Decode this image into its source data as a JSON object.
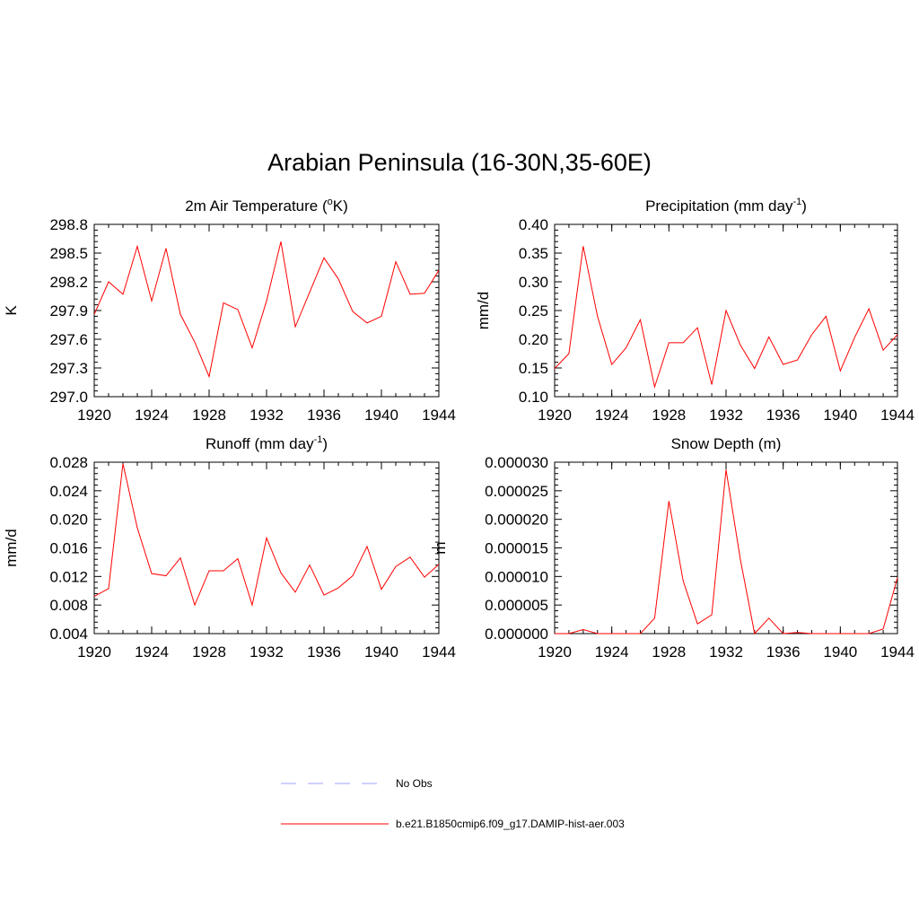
{
  "title": "Arabian Peninsula (16-30N,35-60E)",
  "colors": {
    "model": "#ff0000",
    "obs": "#a0a0ff",
    "axis": "#000000"
  },
  "legend": {
    "items": [
      {
        "label": "No Obs",
        "style": "dashed",
        "color": "#a0a0ff"
      },
      {
        "label": "b.e21.B1850cmip6.f09_g17.DAMIP-hist-aer.003",
        "style": "solid",
        "color": "#ff0000"
      }
    ]
  },
  "chart_data": [
    {
      "type": "line",
      "title": "2m Air Temperature (",
      "title_sup": "o",
      "title_suffix": "K)",
      "ylabel": "K",
      "xlim": [
        1920,
        1944
      ],
      "ylim": [
        297.0,
        298.8
      ],
      "xticks": [
        1920,
        1924,
        1928,
        1932,
        1936,
        1940,
        1944
      ],
      "yticks": [
        297.0,
        297.3,
        297.6,
        297.9,
        298.2,
        298.5,
        298.8
      ],
      "ytick_labels": [
        "297.0",
        "297.3",
        "297.6",
        "297.9",
        "298.2",
        "298.5",
        "298.8"
      ],
      "x": [
        1920,
        1921,
        1922,
        1923,
        1924,
        1925,
        1926,
        1927,
        1928,
        1929,
        1930,
        1931,
        1932,
        1933,
        1934,
        1935,
        1936,
        1937,
        1938,
        1939,
        1940,
        1941,
        1942,
        1943,
        1944
      ],
      "series": [
        {
          "values": [
            297.86,
            298.2,
            298.07,
            298.57,
            298.0,
            298.55,
            297.86,
            297.57,
            297.21,
            297.98,
            297.91,
            297.51,
            298.0,
            298.62,
            297.73,
            298.09,
            298.45,
            298.23,
            297.89,
            297.77,
            297.84,
            298.41,
            298.07,
            298.08,
            298.32
          ]
        }
      ]
    },
    {
      "type": "line",
      "title": "Precipitation (mm day",
      "title_sup": "-1",
      "title_suffix": ")",
      "ylabel": "mm/d",
      "xlim": [
        1920,
        1944
      ],
      "ylim": [
        0.1,
        0.4
      ],
      "xticks": [
        1920,
        1924,
        1928,
        1932,
        1936,
        1940,
        1944
      ],
      "yticks": [
        0.1,
        0.15,
        0.2,
        0.25,
        0.3,
        0.35,
        0.4
      ],
      "ytick_labels": [
        "0.10",
        "0.15",
        "0.20",
        "0.25",
        "0.30",
        "0.35",
        "0.40"
      ],
      "x": [
        1920,
        1921,
        1922,
        1923,
        1924,
        1925,
        1926,
        1927,
        1928,
        1929,
        1930,
        1931,
        1932,
        1933,
        1934,
        1935,
        1936,
        1937,
        1938,
        1939,
        1940,
        1941,
        1942,
        1943,
        1944
      ],
      "series": [
        {
          "values": [
            0.149,
            0.175,
            0.362,
            0.24,
            0.156,
            0.185,
            0.234,
            0.117,
            0.194,
            0.194,
            0.22,
            0.121,
            0.25,
            0.19,
            0.149,
            0.204,
            0.156,
            0.164,
            0.208,
            0.24,
            0.145,
            0.203,
            0.253,
            0.181,
            0.208
          ]
        }
      ]
    },
    {
      "type": "line",
      "title": "Runoff (mm day",
      "title_sup": "-1",
      "title_suffix": ")",
      "ylabel": "mm/d",
      "xlim": [
        1920,
        1944
      ],
      "ylim": [
        0.004,
        0.028
      ],
      "xticks": [
        1920,
        1924,
        1928,
        1932,
        1936,
        1940,
        1944
      ],
      "yticks": [
        0.004,
        0.008,
        0.012,
        0.016,
        0.02,
        0.024,
        0.028
      ],
      "ytick_labels": [
        "0.004",
        "0.008",
        "0.012",
        "0.016",
        "0.020",
        "0.024",
        "0.028"
      ],
      "x": [
        1920,
        1921,
        1922,
        1923,
        1924,
        1925,
        1926,
        1927,
        1928,
        1929,
        1930,
        1931,
        1932,
        1933,
        1934,
        1935,
        1936,
        1937,
        1938,
        1939,
        1940,
        1941,
        1942,
        1943,
        1944
      ],
      "series": [
        {
          "values": [
            0.0092,
            0.0103,
            0.0278,
            0.0188,
            0.0124,
            0.0121,
            0.0146,
            0.008,
            0.0128,
            0.0128,
            0.0145,
            0.008,
            0.0174,
            0.0125,
            0.0098,
            0.0136,
            0.0094,
            0.0104,
            0.0121,
            0.0162,
            0.0102,
            0.0134,
            0.0147,
            0.0119,
            0.0137
          ]
        }
      ]
    },
    {
      "type": "line",
      "title": "Snow Depth (m)",
      "title_sup": "",
      "title_suffix": "",
      "ylabel": "m",
      "xlim": [
        1920,
        1944
      ],
      "ylim": [
        0.0,
        3e-05
      ],
      "xticks": [
        1920,
        1924,
        1928,
        1932,
        1936,
        1940,
        1944
      ],
      "yticks": [
        0.0,
        5e-06,
        1e-05,
        1.5e-05,
        2e-05,
        2.5e-05,
        3e-05
      ],
      "ytick_labels": [
        "0.000000",
        "0.000005",
        "0.000010",
        "0.000015",
        "0.000020",
        "0.000025",
        "0.000030"
      ],
      "x": [
        1920,
        1921,
        1922,
        1923,
        1924,
        1925,
        1926,
        1927,
        1928,
        1929,
        1930,
        1931,
        1932,
        1933,
        1934,
        1935,
        1936,
        1937,
        1938,
        1939,
        1940,
        1941,
        1942,
        1943,
        1944
      ],
      "series": [
        {
          "values": [
            0.0,
            0.0,
            7e-07,
            0.0,
            0.0,
            0.0,
            0.0,
            2.7e-06,
            2.32e-05,
            9.2e-06,
            1.7e-06,
            3.3e-06,
            2.87e-05,
            1.3e-05,
            0.0,
            2.7e-06,
            0.0,
            2e-07,
            0.0,
            0.0,
            0.0,
            0.0,
            0.0,
            8e-07,
            9.8e-06
          ]
        }
      ]
    }
  ]
}
